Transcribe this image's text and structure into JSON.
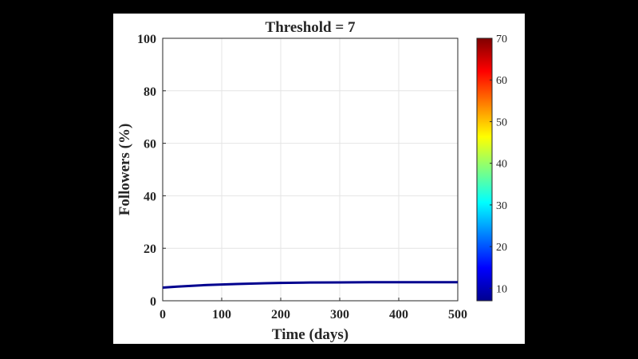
{
  "chart_data": {
    "type": "line",
    "title": "Threshold = 7",
    "xlabel": "Time (days)",
    "ylabel": "Followers (%)",
    "xlim": [
      0,
      500
    ],
    "ylim": [
      0,
      100
    ],
    "xticks": [
      0,
      100,
      200,
      300,
      400,
      500
    ],
    "yticks": [
      0,
      20,
      40,
      60,
      80,
      100
    ],
    "grid": true,
    "series": [
      {
        "color": "#00008f",
        "x": [
          0,
          25,
          50,
          75,
          100,
          125,
          150,
          175,
          200,
          250,
          300,
          350,
          400,
          450,
          500
        ],
        "y": [
          5.0,
          5.4,
          5.7,
          6.0,
          6.2,
          6.4,
          6.55,
          6.7,
          6.8,
          6.95,
          7.0,
          7.05,
          7.05,
          7.05,
          7.05
        ]
      }
    ],
    "colorbar": {
      "colormap": "jet",
      "range": [
        7,
        70
      ],
      "ticks": [
        10,
        20,
        30,
        40,
        50,
        60,
        70
      ]
    }
  }
}
